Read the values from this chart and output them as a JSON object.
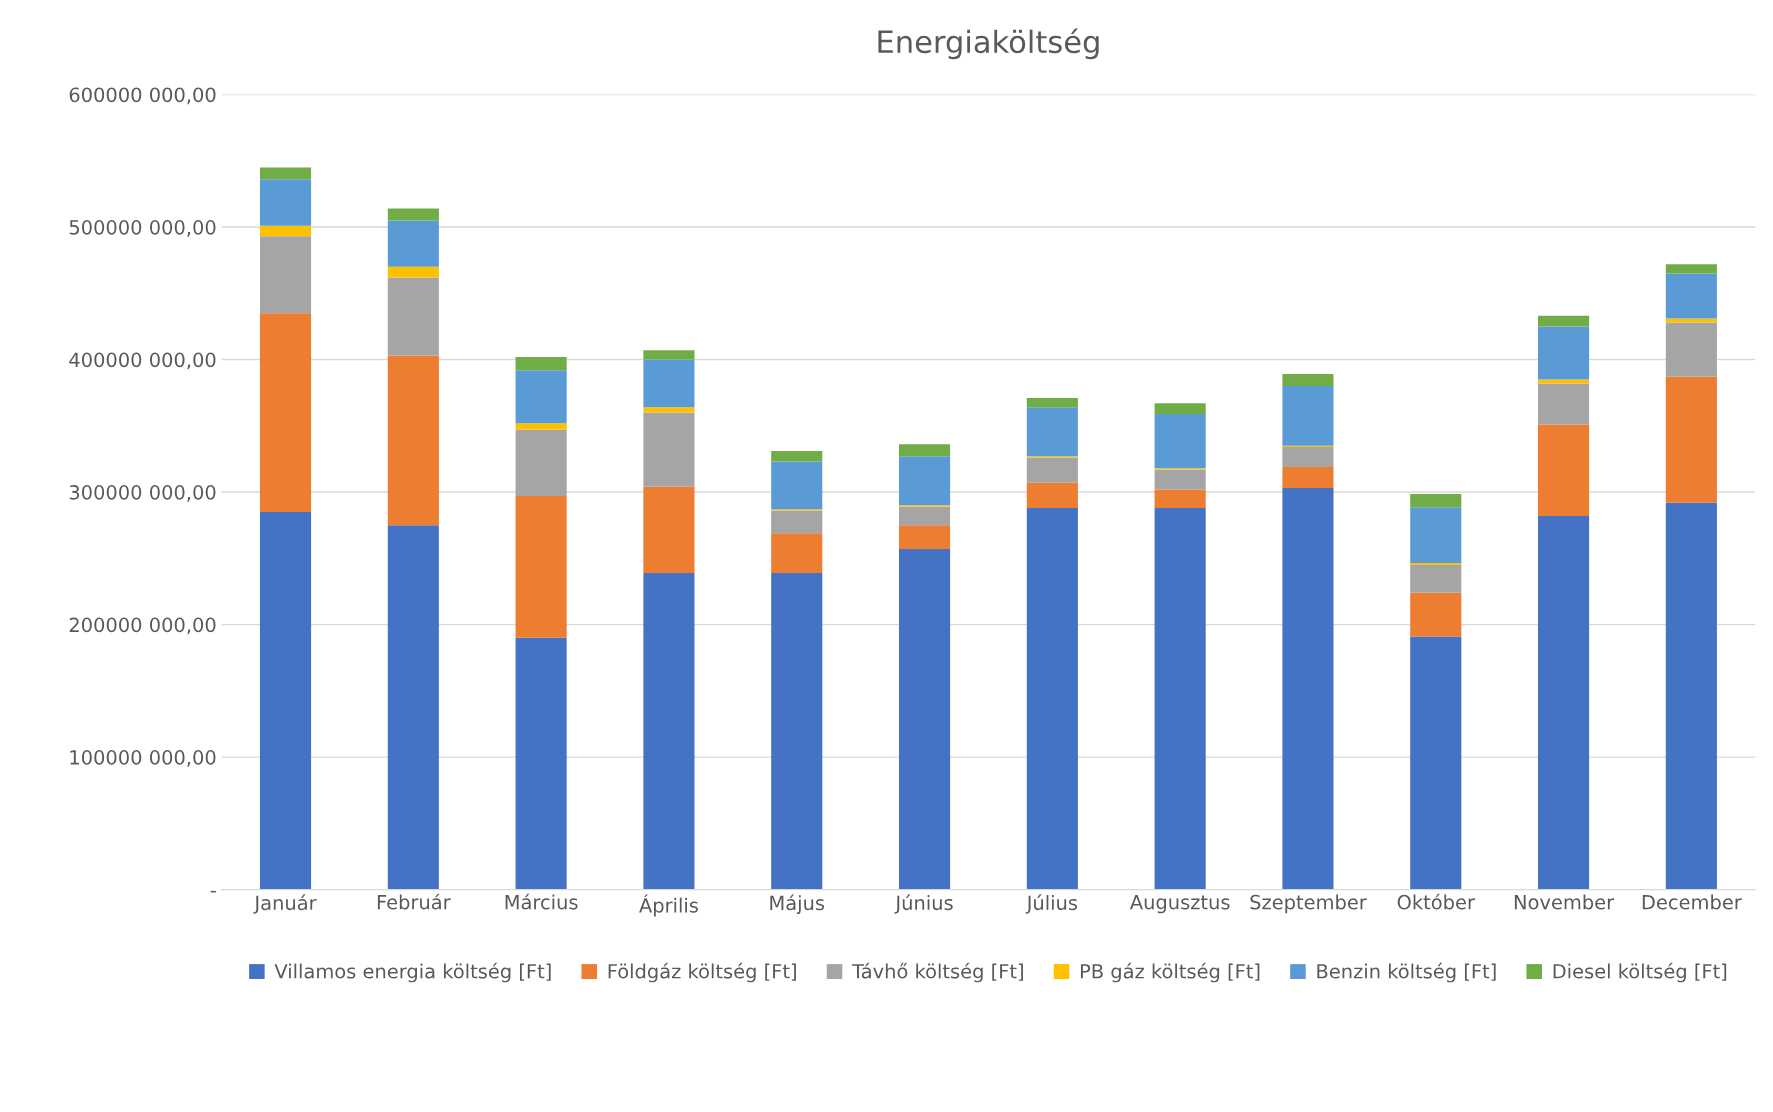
{
  "chart_data": {
    "type": "bar",
    "title": "Energiaköltség",
    "stacked": true,
    "grid": "y",
    "legend": "bottom",
    "categories": [
      "Január",
      "Február",
      "Március",
      "Április",
      "Május",
      "Június",
      "Július",
      "Augusztus",
      "Szeptember",
      "Október",
      "November",
      "December"
    ],
    "ylim": [
      0,
      600000000
    ],
    "yticks": [
      {
        "value": 0,
        "label": "-"
      },
      {
        "value": 100000000,
        "label": "100000 000,00"
      },
      {
        "value": 200000000,
        "label": "200000 000,00"
      },
      {
        "value": 300000000,
        "label": "300000 000,00"
      },
      {
        "value": 400000000,
        "label": "400000 000,00"
      },
      {
        "value": 500000000,
        "label": "500000 000,00"
      },
      {
        "value": 600000000,
        "label": "600000 000,00"
      }
    ],
    "series": [
      {
        "name": "Villamos energia költség [Ft]",
        "color": "#4472c4",
        "values": [
          285000000,
          275000000,
          190000000,
          239000000,
          239000000,
          257000000,
          288000000,
          288000000,
          303000000,
          191000000,
          282000000,
          292000000
        ]
      },
      {
        "name": "Földgáz költség [Ft]",
        "color": "#ed7d31",
        "values": [
          150000000,
          128000000,
          107000000,
          65000000,
          30000000,
          18000000,
          19000000,
          14000000,
          16000000,
          33000000,
          69000000,
          95000000
        ]
      },
      {
        "name": "Távhő költség [Ft]",
        "color": "#a5a5a5",
        "values": [
          58000000,
          59000000,
          50000000,
          56000000,
          17000000,
          14000000,
          19000000,
          15000000,
          15000000,
          21000000,
          31000000,
          41000000
        ]
      },
      {
        "name": "PB gáz költség [Ft]",
        "color": "#ffc000",
        "values": [
          8000000,
          8000000,
          5000000,
          4000000,
          1000000,
          1000000,
          1000000,
          1000000,
          1000000,
          1500000,
          3000000,
          3000000
        ]
      },
      {
        "name": "Benzin költség [Ft]",
        "color": "#5b9bd5",
        "values": [
          35000000,
          35000000,
          40000000,
          36000000,
          36000000,
          37000000,
          37000000,
          41000000,
          45000000,
          42000000,
          40000000,
          34000000
        ]
      },
      {
        "name": "Diesel költség [Ft]",
        "color": "#70ad47",
        "values": [
          9000000,
          9000000,
          10000000,
          7000000,
          8000000,
          9000000,
          7000000,
          8000000,
          9000000,
          10000000,
          8000000,
          7000000
        ]
      }
    ]
  }
}
